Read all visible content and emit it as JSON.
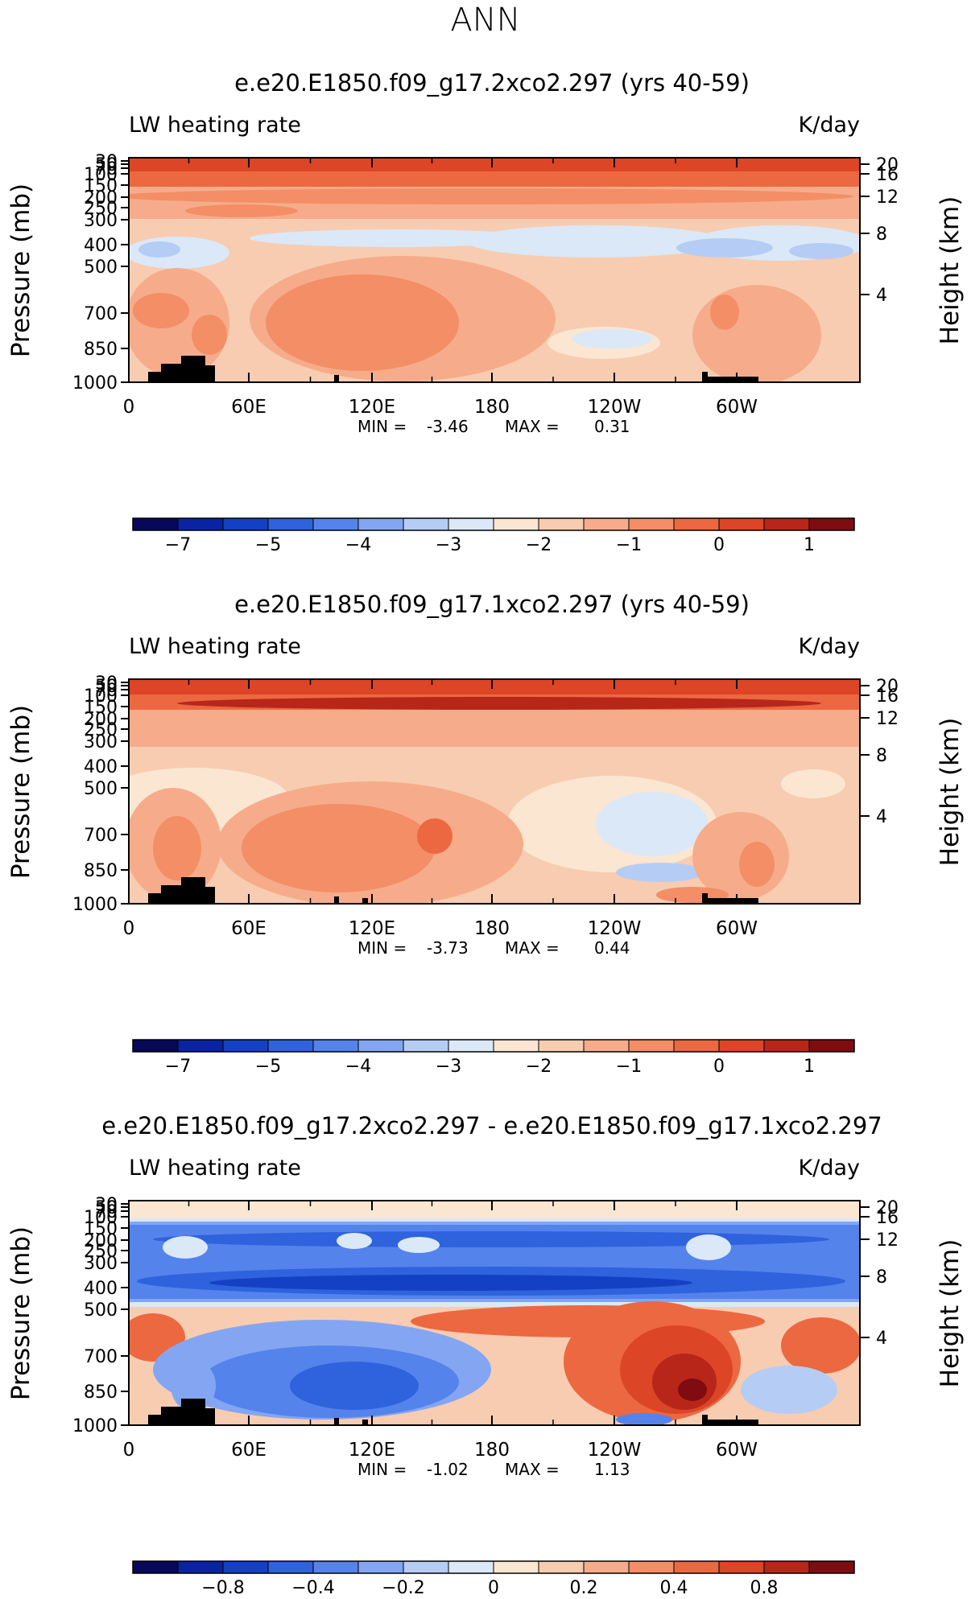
{
  "figure": {
    "suptitle": "ANN",
    "panels": [
      {
        "title": "e.e20.E1850.f09_g17.2xco2.297 (yrs 40-59)",
        "left_label": "LW heating rate",
        "right_label": "K/day",
        "ylabel": "Pressure (mb)",
        "ylabel_right": "Height (km)",
        "min_label": "MIN =",
        "min_value": "-3.46",
        "max_label": "MAX =",
        "max_value": "0.31",
        "colorbar_ticks": [
          "−7",
          "−5",
          "−4",
          "−3",
          "−2",
          "−1",
          "0",
          "1"
        ]
      },
      {
        "title": "e.e20.E1850.f09_g17.1xco2.297 (yrs 40-59)",
        "left_label": "LW heating rate",
        "right_label": "K/day",
        "ylabel": "Pressure (mb)",
        "ylabel_right": "Height (km)",
        "min_label": "MIN =",
        "min_value": "-3.73",
        "max_label": "MAX =",
        "max_value": "0.44",
        "colorbar_ticks": [
          "−7",
          "−5",
          "−4",
          "−3",
          "−2",
          "−1",
          "0",
          "1"
        ]
      },
      {
        "title": "e.e20.E1850.f09_g17.2xco2.297 - e.e20.E1850.f09_g17.1xco2.297",
        "left_label": "LW heating rate",
        "right_label": "K/day",
        "ylabel": "Pressure (mb)",
        "ylabel_right": "Height (km)",
        "min_label": "MIN =",
        "min_value": "-1.02",
        "max_label": "MAX =",
        "max_value": "1.13",
        "colorbar_ticks": [
          "−0.8",
          "−0.4",
          "−0.2",
          "0",
          "0.2",
          "0.4",
          "0.8"
        ]
      }
    ],
    "colors": {
      "seq16": [
        "#08085a",
        "#0a23a3",
        "#1441c4",
        "#2f62dd",
        "#5483ec",
        "#84a6f2",
        "#b5cdf5",
        "#dbe8f7",
        "#fbe6d2",
        "#f8ccb1",
        "#f6ac8a",
        "#f38e66",
        "#ec6840",
        "#dc4526",
        "#b8261a",
        "#7e0c10"
      ],
      "land": "#000000"
    }
  },
  "chart_data": [
    {
      "type": "heatmap",
      "title": "e.e20.E1850.f09_g17.2xco2.297 (yrs 40-59)",
      "xlabel": "",
      "ylabel": "Pressure (mb)",
      "ylabel_right": "Height (km)",
      "x_ticks": [
        "0",
        "60E",
        "120E",
        "180",
        "120W",
        "60W"
      ],
      "y_ticks": [
        "30",
        "50",
        "70",
        "100",
        "150",
        "200",
        "250",
        "300",
        "400",
        "500",
        "700",
        "850",
        "1000"
      ],
      "y_right_ticks": [
        "20",
        "16",
        "12",
        "8",
        "4"
      ],
      "units": "K/day",
      "min": -3.46,
      "max": 0.31,
      "colorbar_levels": [
        -7,
        -5,
        -4,
        -3,
        -2,
        -1,
        0,
        1
      ]
    },
    {
      "type": "heatmap",
      "title": "e.e20.E1850.f09_g17.1xco2.297 (yrs 40-59)",
      "xlabel": "",
      "ylabel": "Pressure (mb)",
      "ylabel_right": "Height (km)",
      "x_ticks": [
        "0",
        "60E",
        "120E",
        "180",
        "120W",
        "60W"
      ],
      "y_ticks": [
        "30",
        "50",
        "70",
        "100",
        "150",
        "200",
        "250",
        "300",
        "400",
        "500",
        "700",
        "850",
        "1000"
      ],
      "y_right_ticks": [
        "20",
        "16",
        "12",
        "8",
        "4"
      ],
      "units": "K/day",
      "min": -3.73,
      "max": 0.44,
      "colorbar_levels": [
        -7,
        -5,
        -4,
        -3,
        -2,
        -1,
        0,
        1
      ]
    },
    {
      "type": "heatmap",
      "title": "e.e20.E1850.f09_g17.2xco2.297 - e.e20.E1850.f09_g17.1xco2.297",
      "xlabel": "",
      "ylabel": "Pressure (mb)",
      "ylabel_right": "Height (km)",
      "x_ticks": [
        "0",
        "60E",
        "120E",
        "180",
        "120W",
        "60W"
      ],
      "y_ticks": [
        "30",
        "50",
        "70",
        "100",
        "150",
        "200",
        "250",
        "300",
        "400",
        "500",
        "700",
        "850",
        "1000"
      ],
      "y_right_ticks": [
        "20",
        "16",
        "12",
        "8",
        "4"
      ],
      "units": "K/day",
      "min": -1.02,
      "max": 1.13,
      "colorbar_levels": [
        -0.8,
        -0.4,
        -0.2,
        0,
        0.2,
        0.4,
        0.8
      ]
    }
  ]
}
